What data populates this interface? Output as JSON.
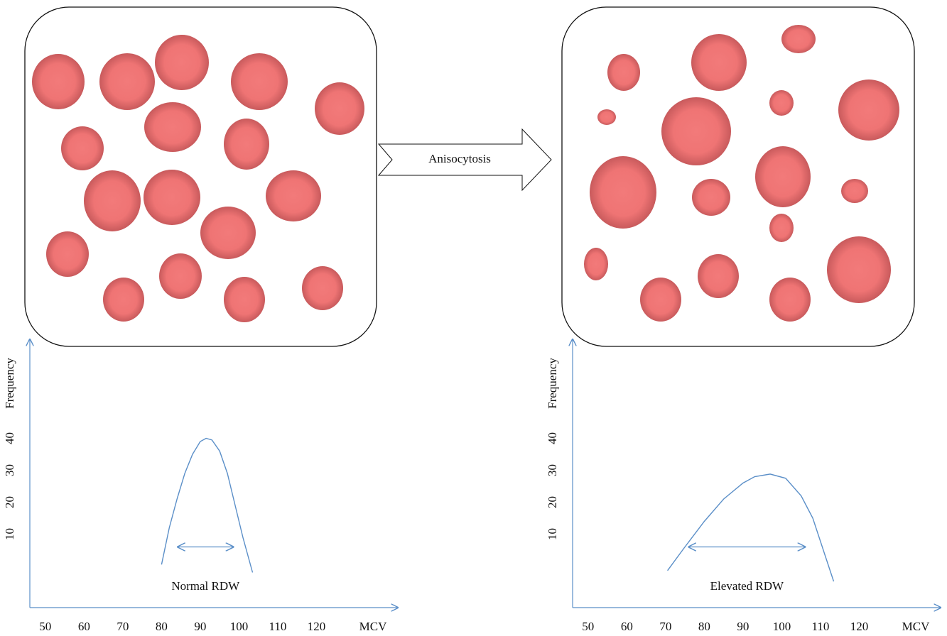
{
  "diagram": {
    "arrow_label": "Anisocytosis"
  },
  "chart_data": [
    {
      "type": "line",
      "annotation": "Normal RDW",
      "x_label": "MCV",
      "y_label": "Frequency",
      "color": "#5b8fc8",
      "x": [
        80,
        82,
        84,
        86,
        88,
        90,
        91.5,
        93,
        95,
        97,
        99,
        101,
        103.5
      ],
      "values": [
        0.5,
        12,
        21,
        29,
        35,
        39,
        40,
        39.5,
        36,
        29,
        19,
        9,
        -2
      ],
      "rdw_arrow": {
        "x": [
          84.2,
          98.5
        ],
        "y": 6
      },
      "xlim": [
        46,
        141
      ],
      "ylim": [
        -13,
        71
      ],
      "xticks": [
        50,
        60,
        70,
        80,
        90,
        100,
        110,
        120
      ],
      "yticks": [
        10,
        20,
        30,
        40
      ]
    },
    {
      "type": "line",
      "annotation": "Elevated RDW",
      "x_label": "MCV",
      "y_label": "Frequency",
      "color": "#5b8fc8",
      "x": [
        70.5,
        75,
        80,
        85,
        90,
        93,
        97,
        101,
        105,
        108,
        111,
        113.4
      ],
      "values": [
        -1.4,
        6,
        14,
        21,
        26,
        28,
        28.8,
        27.5,
        22,
        15,
        4,
        -4.8
      ],
      "rdw_arrow": {
        "x": [
          76,
          106
        ],
        "y": 6
      },
      "xlim": [
        46,
        141
      ],
      "ylim": [
        -13,
        71
      ],
      "xticks": [
        50,
        60,
        70,
        80,
        90,
        100,
        110,
        120
      ],
      "yticks": [
        10,
        20,
        30,
        40
      ]
    }
  ]
}
